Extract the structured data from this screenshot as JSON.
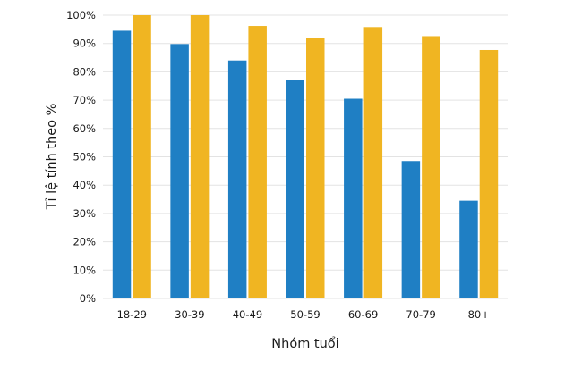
{
  "chart_data": {
    "type": "bar",
    "xlabel": "Nhóm tuổi",
    "ylabel": "Tỉ lệ tính theo %",
    "ylim": [
      0,
      100
    ],
    "yticks": [
      "0%",
      "10%",
      "20%",
      "30%",
      "40%",
      "50%",
      "60%",
      "70%",
      "80%",
      "90%",
      "100%"
    ],
    "categories": [
      "18-29",
      "30-39",
      "40-49",
      "50-59",
      "60-69",
      "70-79",
      "80+"
    ],
    "grid": true,
    "series": [
      {
        "color": "#1f7fc4",
        "values": [
          94.5,
          89.8,
          84.0,
          77.0,
          70.5,
          48.5,
          34.5
        ]
      },
      {
        "color": "#f0b522",
        "values": [
          100,
          100,
          96.2,
          92.0,
          95.8,
          92.6,
          87.7
        ]
      }
    ]
  }
}
